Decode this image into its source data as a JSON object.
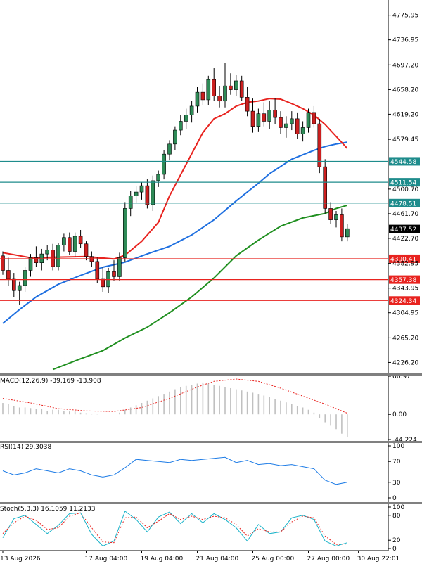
{
  "instrument_header": "",
  "colors": {
    "bull": "#2e8b57",
    "bear": "#cc1f1f",
    "wick": "#000000",
    "ma_fast": "#e8231f",
    "ma_mid": "#1e6fe0",
    "ma_slow": "#1f8f1f",
    "support": "#e8231f",
    "resistance": "#1e8c8c",
    "macd_hist": "#c0c0c0",
    "macd_signal": "#e8231f",
    "rsi": "#1e7ce6",
    "stoch_main": "#1ab3c9",
    "stoch_signal": "#e8231f",
    "grid": "#d9d9d9",
    "current_price_bg": "#000000"
  },
  "chart_data": [
    {
      "panel": "price",
      "type": "candlestick",
      "grid": true,
      "ylim": [
        4210,
        4800
      ],
      "y_ticks": [
        "4775.95",
        "4736.95",
        "4697.20",
        "4658.20",
        "4619.20",
        "4579.45",
        "4500.70",
        "4461.70",
        "4422.70",
        "4382.95",
        "4343.95",
        "4304.95",
        "4265.20",
        "4226.20"
      ],
      "x_labels": [
        "13 Aug 2026",
        "17 Aug 04:00",
        "19 Aug 04:00",
        "21 Aug 04:00",
        "25 Aug 00:00",
        "27 Aug 00:00",
        "30 Aug 22:01"
      ],
      "x_label_positions": [
        0,
        15,
        25,
        35,
        45,
        55,
        64
      ],
      "candles": [
        [
          4395,
          4402,
          4365,
          4372
        ],
        [
          4372,
          4392,
          4348,
          4358
        ],
        [
          4358,
          4368,
          4330,
          4340
        ],
        [
          4340,
          4354,
          4318,
          4348
        ],
        [
          4348,
          4378,
          4338,
          4372
        ],
        [
          4372,
          4398,
          4362,
          4392
        ],
        [
          4392,
          4410,
          4378,
          4384
        ],
        [
          4384,
          4406,
          4372,
          4398
        ],
        [
          4398,
          4412,
          4388,
          4404
        ],
        [
          4404,
          4414,
          4372,
          4378
        ],
        [
          4378,
          4416,
          4372,
          4412
        ],
        [
          4412,
          4430,
          4402,
          4424
        ],
        [
          4424,
          4432,
          4396,
          4402
        ],
        [
          4402,
          4432,
          4394,
          4426
        ],
        [
          4426,
          4436,
          4408,
          4414
        ],
        [
          4414,
          4418,
          4388,
          4394
        ],
        [
          4394,
          4402,
          4378,
          4386
        ],
        [
          4386,
          4392,
          4352,
          4358
        ],
        [
          4358,
          4378,
          4338,
          4346
        ],
        [
          4346,
          4376,
          4336,
          4370
        ],
        [
          4370,
          4388,
          4356,
          4362
        ],
        [
          4362,
          4400,
          4356,
          4392
        ],
        [
          4392,
          4480,
          4386,
          4470
        ],
        [
          4470,
          4498,
          4458,
          4490
        ],
        [
          4490,
          4506,
          4478,
          4496
        ],
        [
          4496,
          4512,
          4484,
          4506
        ],
        [
          4506,
          4516,
          4470,
          4476
        ],
        [
          4476,
          4522,
          4466,
          4514
        ],
        [
          4514,
          4530,
          4504,
          4524
        ],
        [
          4524,
          4562,
          4516,
          4556
        ],
        [
          4556,
          4578,
          4546,
          4572
        ],
        [
          4572,
          4600,
          4562,
          4594
        ],
        [
          4594,
          4618,
          4586,
          4608
        ],
        [
          4608,
          4628,
          4596,
          4618
        ],
        [
          4618,
          4640,
          4606,
          4632
        ],
        [
          4632,
          4662,
          4622,
          4654
        ],
        [
          4654,
          4668,
          4634,
          4642
        ],
        [
          4642,
          4680,
          4634,
          4674
        ],
        [
          4674,
          4692,
          4640,
          4648
        ],
        [
          4648,
          4664,
          4630,
          4640
        ],
        [
          4640,
          4700,
          4630,
          4664
        ],
        [
          4664,
          4684,
          4650,
          4658
        ],
        [
          4658,
          4682,
          4648,
          4672
        ],
        [
          4672,
          4680,
          4640,
          4646
        ],
        [
          4646,
          4662,
          4616,
          4624
        ],
        [
          4624,
          4644,
          4590,
          4600
        ],
        [
          4600,
          4628,
          4592,
          4620
        ],
        [
          4620,
          4638,
          4600,
          4608
        ],
        [
          4608,
          4640,
          4596,
          4626
        ],
        [
          4626,
          4644,
          4604,
          4614
        ],
        [
          4614,
          4624,
          4588,
          4598
        ],
        [
          4598,
          4616,
          4582,
          4604
        ],
        [
          4604,
          4624,
          4594,
          4612
        ],
        [
          4612,
          4622,
          4580,
          4588
        ],
        [
          4588,
          4608,
          4576,
          4598
        ],
        [
          4598,
          4628,
          4590,
          4622
        ],
        [
          4622,
          4632,
          4598,
          4604
        ],
        [
          4604,
          4612,
          4526,
          4536
        ],
        [
          4536,
          4548,
          4462,
          4470
        ],
        [
          4470,
          4480,
          4446,
          4452
        ],
        [
          4452,
          4466,
          4440,
          4460
        ],
        [
          4460,
          4470,
          4418,
          4425
        ],
        [
          4425,
          4445,
          4418,
          4438
        ]
      ],
      "ma_fast": [
        [
          0,
          4400
        ],
        [
          5,
          4392
        ],
        [
          10,
          4393
        ],
        [
          15,
          4394
        ],
        [
          20,
          4390
        ],
        [
          22,
          4396
        ],
        [
          25,
          4418
        ],
        [
          28,
          4448
        ],
        [
          30,
          4490
        ],
        [
          33,
          4540
        ],
        [
          36,
          4590
        ],
        [
          38,
          4612
        ],
        [
          40,
          4620
        ],
        [
          42,
          4632
        ],
        [
          44,
          4638
        ],
        [
          46,
          4640
        ],
        [
          48,
          4644
        ],
        [
          50,
          4643
        ],
        [
          52,
          4636
        ],
        [
          54,
          4628
        ],
        [
          56,
          4618
        ],
        [
          58,
          4603
        ],
        [
          60,
          4584
        ],
        [
          62,
          4565
        ]
      ],
      "ma_mid": [
        [
          0,
          4288
        ],
        [
          3,
          4310
        ],
        [
          6,
          4330
        ],
        [
          10,
          4350
        ],
        [
          14,
          4364
        ],
        [
          18,
          4377
        ],
        [
          22,
          4385
        ],
        [
          26,
          4398
        ],
        [
          30,
          4410
        ],
        [
          34,
          4428
        ],
        [
          38,
          4452
        ],
        [
          42,
          4482
        ],
        [
          46,
          4510
        ],
        [
          48,
          4525
        ],
        [
          52,
          4548
        ],
        [
          56,
          4562
        ],
        [
          58,
          4568
        ],
        [
          60,
          4572
        ],
        [
          62,
          4575
        ]
      ],
      "ma_slow": [
        [
          9,
          4215
        ],
        [
          14,
          4232
        ],
        [
          18,
          4245
        ],
        [
          22,
          4265
        ],
        [
          26,
          4282
        ],
        [
          30,
          4305
        ],
        [
          34,
          4330
        ],
        [
          38,
          4360
        ],
        [
          42,
          4395
        ],
        [
          46,
          4420
        ],
        [
          50,
          4442
        ],
        [
          54,
          4455
        ],
        [
          58,
          4462
        ],
        [
          60,
          4470
        ],
        [
          62,
          4475
        ]
      ],
      "resistance_levels": [
        {
          "price": 4544.58,
          "label": "4544.58"
        },
        {
          "price": 4511.54,
          "label": "4511.54"
        },
        {
          "price": 4478.51,
          "label": "4478.51"
        }
      ],
      "support_levels": [
        {
          "price": 4390.41,
          "label": "4390.41"
        },
        {
          "price": 4357.38,
          "label": "4357.38"
        },
        {
          "price": 4324.34,
          "label": "4324.34"
        }
      ],
      "current_price": {
        "price": 4437.52,
        "label": "4437.52"
      }
    },
    {
      "panel": "macd",
      "type": "bar",
      "title": "MACD(12,26,9) -39.169 -13.908",
      "y_ticks": [
        "66.97",
        "0.00",
        "-44.224"
      ],
      "ylim": [
        -44.224,
        66.97
      ],
      "histogram": [
        20,
        18,
        14,
        12,
        12,
        11,
        10,
        10,
        6,
        8,
        8,
        6,
        5,
        5,
        3,
        2,
        1,
        1,
        0,
        0,
        0,
        3,
        8,
        12,
        16,
        20,
        24,
        28,
        32,
        36,
        40,
        44,
        48,
        50,
        52,
        54,
        56,
        54,
        52,
        50,
        48,
        46,
        44,
        42,
        40,
        38,
        36,
        33,
        30,
        27,
        24,
        21,
        18,
        14,
        12,
        8,
        3,
        -6,
        -14,
        -20,
        -26,
        -34,
        -40
      ],
      "signal": [
        [
          0,
          28
        ],
        [
          5,
          20
        ],
        [
          10,
          10
        ],
        [
          15,
          6
        ],
        [
          20,
          5
        ],
        [
          25,
          12
        ],
        [
          30,
          28
        ],
        [
          35,
          48
        ],
        [
          38,
          58
        ],
        [
          42,
          62
        ],
        [
          46,
          58
        ],
        [
          50,
          46
        ],
        [
          54,
          32
        ],
        [
          58,
          18
        ],
        [
          62,
          2
        ]
      ]
    },
    {
      "panel": "rsi",
      "type": "line",
      "title": "RSI(14) 29.3038",
      "y_ticks": [
        "100",
        "70",
        "30",
        "0"
      ],
      "ylim": [
        0,
        100
      ],
      "values": [
        [
          0,
          52
        ],
        [
          2,
          44
        ],
        [
          4,
          48
        ],
        [
          6,
          56
        ],
        [
          8,
          52
        ],
        [
          10,
          48
        ],
        [
          12,
          56
        ],
        [
          14,
          52
        ],
        [
          16,
          44
        ],
        [
          18,
          40
        ],
        [
          20,
          44
        ],
        [
          22,
          58
        ],
        [
          24,
          74
        ],
        [
          26,
          72
        ],
        [
          28,
          70
        ],
        [
          30,
          68
        ],
        [
          32,
          74
        ],
        [
          34,
          72
        ],
        [
          36,
          74
        ],
        [
          38,
          76
        ],
        [
          40,
          78
        ],
        [
          42,
          68
        ],
        [
          44,
          72
        ],
        [
          46,
          64
        ],
        [
          48,
          66
        ],
        [
          50,
          62
        ],
        [
          52,
          64
        ],
        [
          54,
          60
        ],
        [
          56,
          56
        ],
        [
          58,
          34
        ],
        [
          60,
          26
        ],
        [
          62,
          30
        ]
      ]
    },
    {
      "panel": "stoch",
      "type": "line",
      "title": "Stoch(5,3,3) 16.1059 11.2133",
      "y_ticks": [
        "100",
        "80",
        "20",
        "0"
      ],
      "ylim": [
        0,
        100
      ],
      "main": [
        [
          0,
          26
        ],
        [
          2,
          72
        ],
        [
          4,
          80
        ],
        [
          6,
          58
        ],
        [
          8,
          36
        ],
        [
          10,
          56
        ],
        [
          12,
          84
        ],
        [
          14,
          86
        ],
        [
          16,
          34
        ],
        [
          18,
          6
        ],
        [
          20,
          18
        ],
        [
          22,
          90
        ],
        [
          24,
          70
        ],
        [
          26,
          40
        ],
        [
          28,
          76
        ],
        [
          30,
          88
        ],
        [
          32,
          60
        ],
        [
          34,
          84
        ],
        [
          36,
          62
        ],
        [
          38,
          84
        ],
        [
          40,
          70
        ],
        [
          42,
          50
        ],
        [
          44,
          18
        ],
        [
          46,
          58
        ],
        [
          48,
          36
        ],
        [
          50,
          40
        ],
        [
          52,
          74
        ],
        [
          54,
          80
        ],
        [
          56,
          70
        ],
        [
          58,
          18
        ],
        [
          60,
          6
        ],
        [
          62,
          14
        ]
      ],
      "signal": [
        [
          0,
          36
        ],
        [
          2,
          62
        ],
        [
          4,
          78
        ],
        [
          6,
          68
        ],
        [
          8,
          46
        ],
        [
          10,
          50
        ],
        [
          12,
          78
        ],
        [
          14,
          86
        ],
        [
          16,
          50
        ],
        [
          18,
          16
        ],
        [
          20,
          14
        ],
        [
          22,
          74
        ],
        [
          24,
          76
        ],
        [
          26,
          50
        ],
        [
          28,
          66
        ],
        [
          30,
          84
        ],
        [
          32,
          70
        ],
        [
          34,
          78
        ],
        [
          36,
          70
        ],
        [
          38,
          78
        ],
        [
          40,
          74
        ],
        [
          42,
          58
        ],
        [
          44,
          30
        ],
        [
          46,
          48
        ],
        [
          48,
          40
        ],
        [
          50,
          40
        ],
        [
          52,
          64
        ],
        [
          54,
          78
        ],
        [
          56,
          74
        ],
        [
          58,
          30
        ],
        [
          60,
          10
        ],
        [
          62,
          11
        ]
      ]
    }
  ]
}
